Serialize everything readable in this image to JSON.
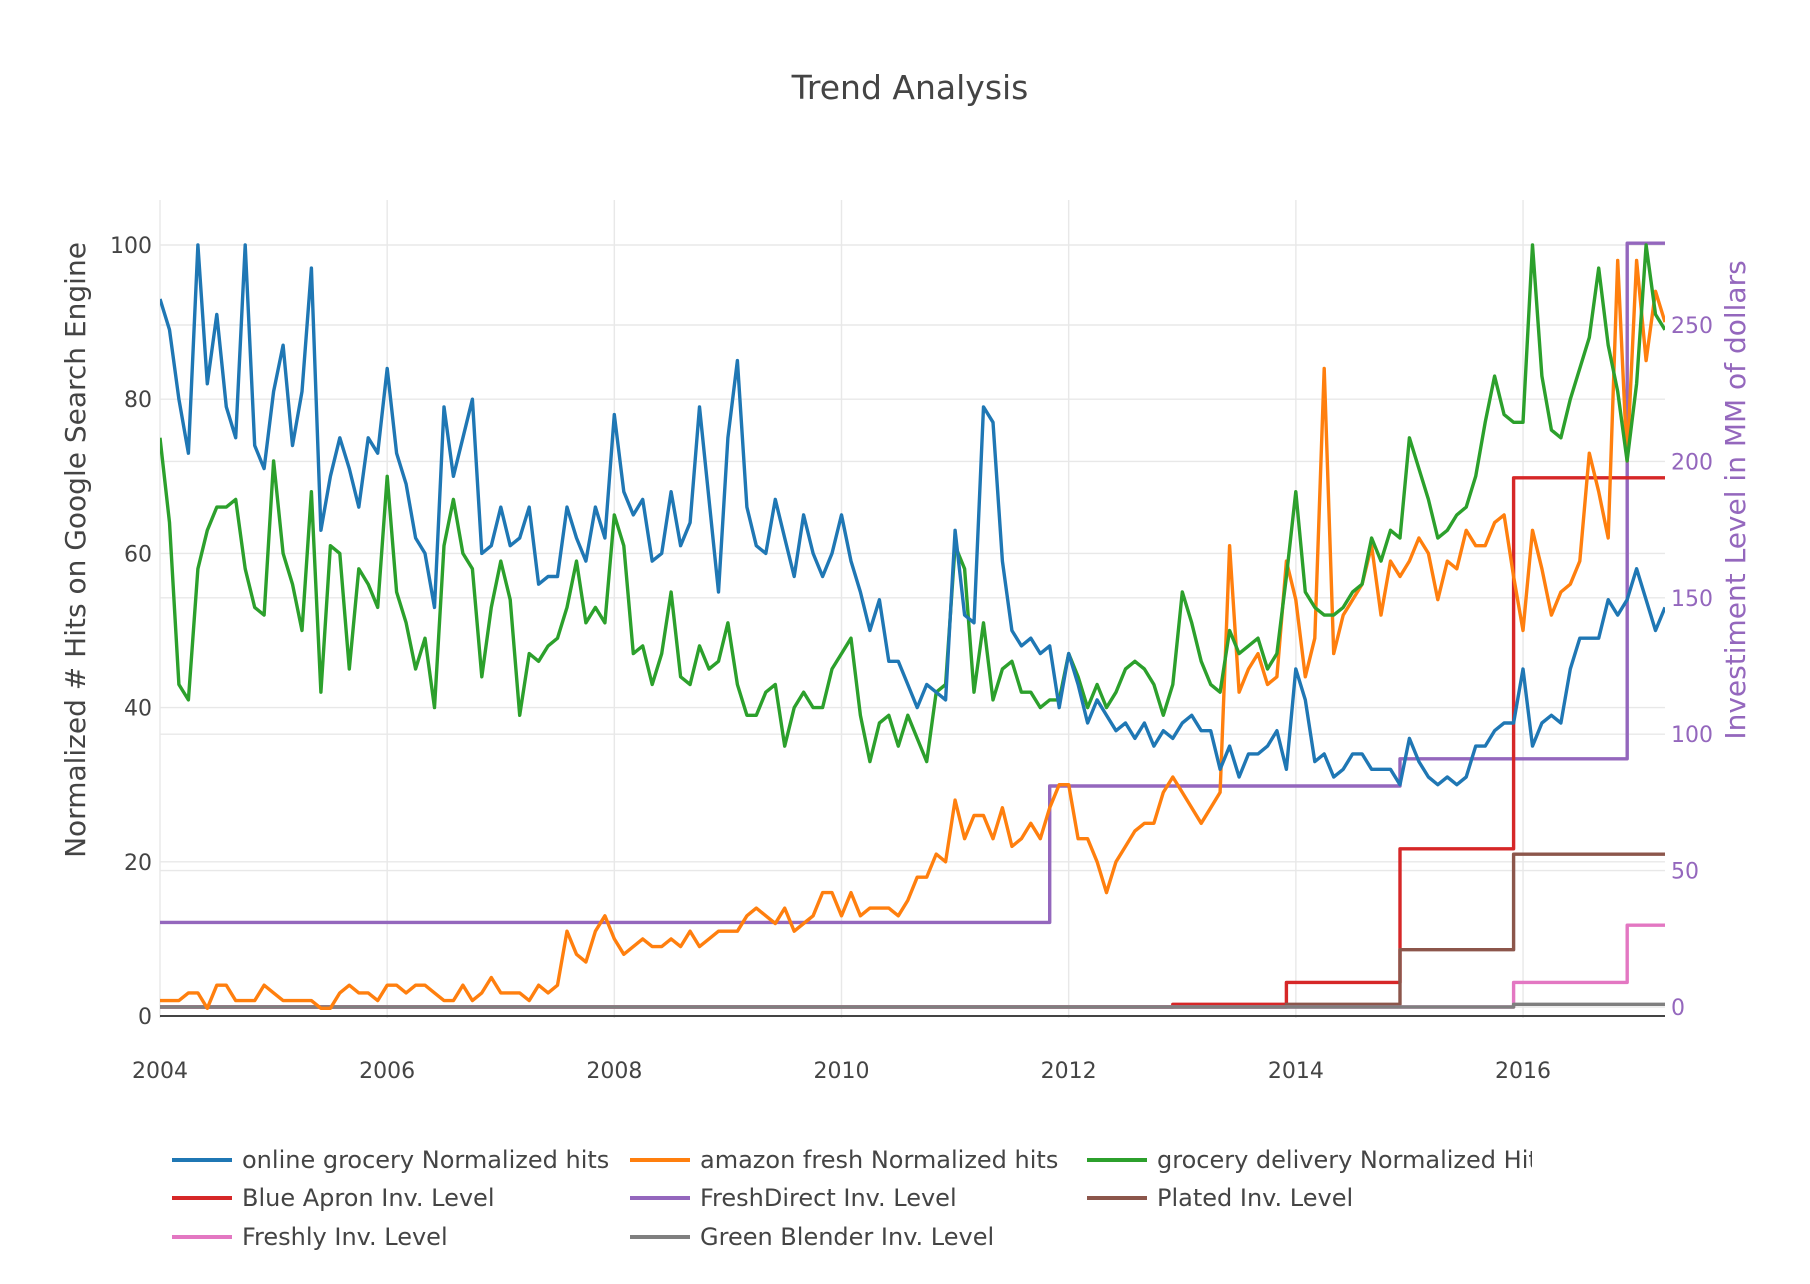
{
  "chart_data": {
    "type": "line",
    "title": "Trend Analysis",
    "ylabel": "Normalized # Hits on Google Search Engine",
    "y2label": "Investiment Level in MM of dollars",
    "xlim": [
      2004.0,
      2017.25
    ],
    "ylim": [
      -2,
      105
    ],
    "y2lim": [
      -5,
      295
    ],
    "x_ticks": [
      "2004",
      "2006",
      "2008",
      "2010",
      "2012",
      "2014",
      "2016"
    ],
    "y_ticks": [
      "0",
      "20",
      "40",
      "60",
      "80",
      "100"
    ],
    "y2_ticks": [
      "0",
      "50",
      "100",
      "150",
      "200",
      "250"
    ],
    "grid": true,
    "legend_position": "bottom",
    "series": [
      {
        "name": "online grocery Normalized hits",
        "color": "#1f77b4",
        "axis": "y",
        "start": 2004.0,
        "step_months": 1,
        "values": [
          93,
          89,
          80,
          73,
          100,
          82,
          91,
          79,
          75,
          100,
          74,
          71,
          81,
          87,
          74,
          81,
          97,
          63,
          70,
          75,
          71,
          66,
          75,
          73,
          84,
          73,
          69,
          62,
          60,
          53,
          79,
          70,
          75,
          80,
          60,
          61,
          66,
          61,
          62,
          66,
          56,
          57,
          57,
          66,
          62,
          59,
          66,
          62,
          78,
          68,
          65,
          67,
          59,
          60,
          68,
          61,
          64,
          79,
          67,
          55,
          75,
          85,
          66,
          61,
          60,
          67,
          62,
          57,
          65,
          60,
          57,
          60,
          65,
          59,
          55,
          50,
          54,
          46,
          46,
          43,
          40,
          43,
          42,
          41,
          63,
          52,
          51,
          79,
          77,
          59,
          50,
          48,
          49,
          47,
          48,
          40,
          47,
          43,
          38,
          41,
          39,
          37,
          38,
          36,
          38,
          35,
          37,
          36,
          38,
          39,
          37,
          37,
          32,
          35,
          31,
          34,
          34,
          35,
          37,
          32,
          45,
          41,
          33,
          34,
          31,
          32,
          34,
          34,
          32,
          32,
          32,
          30,
          36,
          33,
          31,
          30,
          31,
          30,
          31,
          35,
          35,
          37,
          38,
          38,
          45,
          35,
          38,
          39,
          38,
          45,
          49,
          49,
          49,
          54,
          52,
          54,
          58,
          54,
          50,
          53
        ]
      },
      {
        "name": "amazon fresh Normalized hits",
        "color": "#ff7f0e",
        "axis": "y",
        "start": 2004.0,
        "step_months": 1,
        "values": [
          2,
          2,
          2,
          3,
          3,
          1,
          4,
          4,
          2,
          2,
          2,
          4,
          3,
          2,
          2,
          2,
          2,
          1,
          1,
          3,
          4,
          3,
          3,
          2,
          4,
          4,
          3,
          4,
          4,
          3,
          2,
          2,
          4,
          2,
          3,
          5,
          3,
          3,
          3,
          2,
          4,
          3,
          4,
          11,
          8,
          7,
          11,
          13,
          10,
          8,
          9,
          10,
          9,
          9,
          10,
          9,
          11,
          9,
          10,
          11,
          11,
          11,
          13,
          14,
          13,
          12,
          14,
          11,
          12,
          13,
          16,
          16,
          13,
          16,
          13,
          14,
          14,
          14,
          13,
          15,
          18,
          18,
          21,
          20,
          28,
          23,
          26,
          26,
          23,
          27,
          22,
          23,
          25,
          23,
          27,
          30,
          30,
          23,
          23,
          20,
          16,
          20,
          22,
          24,
          25,
          25,
          29,
          31,
          29,
          27,
          25,
          27,
          29,
          61,
          42,
          45,
          47,
          43,
          44,
          59,
          54,
          44,
          49,
          84,
          47,
          52,
          54,
          56,
          61,
          52,
          59,
          57,
          59,
          62,
          60,
          54,
          59,
          58,
          63,
          61,
          61,
          64,
          65,
          57,
          50,
          63,
          58,
          52,
          55,
          56,
          59,
          73,
          68,
          62,
          98,
          72,
          98,
          85,
          94,
          90
        ]
      },
      {
        "name": "grocery delivery Normalized Hits",
        "color": "#2ca02c",
        "axis": "y",
        "start": 2004.0,
        "step_months": 1,
        "values": [
          75,
          64,
          43,
          41,
          58,
          63,
          66,
          66,
          67,
          58,
          53,
          52,
          72,
          60,
          56,
          50,
          68,
          42,
          61,
          60,
          45,
          58,
          56,
          53,
          70,
          55,
          51,
          45,
          49,
          40,
          61,
          67,
          60,
          58,
          44,
          53,
          59,
          54,
          39,
          47,
          46,
          48,
          49,
          53,
          59,
          51,
          53,
          51,
          65,
          61,
          47,
          48,
          43,
          47,
          55,
          44,
          43,
          48,
          45,
          46,
          51,
          43,
          39,
          39,
          42,
          43,
          35,
          40,
          42,
          40,
          40,
          45,
          47,
          49,
          39,
          33,
          38,
          39,
          35,
          39,
          36,
          33,
          42,
          43,
          61,
          58,
          42,
          51,
          41,
          45,
          46,
          42,
          42,
          40,
          41,
          41,
          47,
          44,
          40,
          43,
          40,
          42,
          45,
          46,
          45,
          43,
          39,
          43,
          55,
          51,
          46,
          43,
          42,
          50,
          47,
          48,
          49,
          45,
          47,
          57,
          68,
          55,
          53,
          52,
          52,
          53,
          55,
          56,
          62,
          59,
          63,
          62,
          75,
          71,
          67,
          62,
          63,
          65,
          66,
          70,
          77,
          83,
          78,
          77,
          77,
          100,
          83,
          76,
          75,
          80,
          84,
          88,
          97,
          87,
          81,
          72,
          82,
          100,
          91,
          89
        ]
      },
      {
        "name": "Blue Apron Inv. Level",
        "color": "#d62728",
        "axis": "y2",
        "step": true,
        "points": [
          [
            2004.0,
            0
          ],
          [
            2012.917,
            0
          ],
          [
            2012.917,
            1
          ],
          [
            2013.917,
            1
          ],
          [
            2013.917,
            9
          ],
          [
            2014.917,
            9
          ],
          [
            2014.917,
            58
          ],
          [
            2015.917,
            58
          ],
          [
            2015.917,
            194
          ],
          [
            2017.25,
            194
          ]
        ]
      },
      {
        "name": "FreshDirect Inv. Level",
        "color": "#9467bd",
        "axis": "y2",
        "step": true,
        "points": [
          [
            2004.0,
            31
          ],
          [
            2011.833,
            31
          ],
          [
            2011.833,
            81
          ],
          [
            2014.917,
            81
          ],
          [
            2014.917,
            91
          ],
          [
            2016.917,
            91
          ],
          [
            2016.917,
            280
          ],
          [
            2017.25,
            280
          ]
        ]
      },
      {
        "name": "Plated Inv. Level",
        "color": "#8c564b",
        "axis": "y2",
        "step": true,
        "points": [
          [
            2004.0,
            0
          ],
          [
            2013.917,
            0
          ],
          [
            2013.917,
            1
          ],
          [
            2014.917,
            1
          ],
          [
            2014.917,
            21
          ],
          [
            2015.917,
            21
          ],
          [
            2015.917,
            56
          ],
          [
            2017.25,
            56
          ]
        ]
      },
      {
        "name": "Freshly Inv. Level",
        "color": "#e377c2",
        "axis": "y2",
        "step": true,
        "points": [
          [
            2004.0,
            0
          ],
          [
            2015.917,
            0
          ],
          [
            2015.917,
            9
          ],
          [
            2016.917,
            9
          ],
          [
            2016.917,
            30
          ],
          [
            2017.25,
            30
          ]
        ]
      },
      {
        "name": "Green Blender Inv. Level",
        "color": "#7f7f7f",
        "axis": "y2",
        "step": true,
        "points": [
          [
            2004.0,
            0
          ],
          [
            2015.917,
            0
          ],
          [
            2015.917,
            1
          ],
          [
            2017.25,
            1
          ]
        ]
      }
    ]
  }
}
